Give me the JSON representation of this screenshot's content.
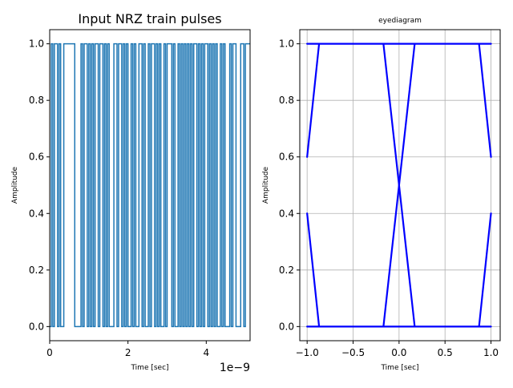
{
  "chart_data": [
    {
      "type": "line",
      "title": "Input NRZ train pulses",
      "xlabel": "Time [sec]",
      "ylabel": "Amplitude",
      "x_offset_label": "1e−9",
      "xlim": [
        0,
        5.12e-09
      ],
      "ylim": [
        -0.05,
        1.05
      ],
      "bit_period_sec": 4e-11,
      "grid": false,
      "x_ticks": [
        0,
        2,
        4
      ],
      "x_tick_labels": [
        "0",
        "2",
        "4"
      ],
      "y_ticks": [
        0.0,
        0.2,
        0.4,
        0.6,
        0.8,
        1.0
      ],
      "y_tick_labels": [
        "0.0",
        "0.2",
        "0.4",
        "0.6",
        "0.8",
        "1.0"
      ],
      "color": "#1f77b4",
      "series": [
        {
          "bits": [
            0,
            1,
            0,
            1,
            1,
            0,
            1,
            0,
            0,
            1,
            1,
            1,
            1,
            1,
            1,
            1,
            0,
            0,
            0,
            0,
            1,
            0,
            1,
            1,
            0,
            1,
            0,
            1,
            0,
            1,
            1,
            0,
            1,
            1,
            0,
            1,
            0,
            1,
            0,
            0,
            0,
            1,
            1,
            0,
            1,
            1,
            0,
            1,
            0,
            1,
            0,
            0,
            1,
            0,
            1,
            0,
            0,
            1,
            1,
            0,
            1,
            0,
            0,
            1,
            0,
            1,
            1,
            0,
            1,
            0,
            1,
            0,
            0,
            1,
            0,
            1,
            1,
            1,
            0,
            1,
            0,
            0,
            1,
            0,
            1,
            0,
            1,
            0,
            1,
            0,
            1,
            0,
            1,
            1,
            0,
            1,
            0,
            1,
            0,
            1,
            1,
            0,
            1,
            0,
            1,
            0,
            1,
            0,
            0,
            1,
            0,
            1,
            0,
            0,
            0,
            1,
            0,
            1,
            1,
            0,
            0,
            0,
            1,
            1,
            0,
            1,
            1,
            1
          ]
        }
      ]
    },
    {
      "type": "line",
      "title": "eyediagram",
      "xlabel": "Time [sec]",
      "ylabel": "Amplitude",
      "xlim": [
        -1.08,
        1.1
      ],
      "ylim": [
        -0.05,
        1.05
      ],
      "grid": true,
      "x_ticks": [
        -1.0,
        -0.5,
        0.0,
        0.5,
        1.0
      ],
      "x_tick_labels": [
        "−1.0",
        "−0.5",
        "0.0",
        "0.5",
        "1.0"
      ],
      "y_ticks": [
        0.0,
        0.2,
        0.4,
        0.6,
        0.8,
        1.0
      ],
      "y_tick_labels": [
        "0.0",
        "0.2",
        "0.4",
        "0.6",
        "0.8",
        "1.0"
      ],
      "color": "#0000ff",
      "series": [
        {
          "x": [
            -1.0,
            1.0
          ],
          "y": [
            1.0,
            1.0
          ]
        },
        {
          "x": [
            -1.0,
            1.0
          ],
          "y": [
            0.0,
            0.0
          ]
        },
        {
          "x": [
            -1.0,
            -0.87
          ],
          "y": [
            0.6,
            1.0
          ]
        },
        {
          "x": [
            -1.0,
            -0.87
          ],
          "y": [
            0.4,
            0.0
          ]
        },
        {
          "x": [
            -0.17,
            0.17
          ],
          "y": [
            1.0,
            0.0
          ]
        },
        {
          "x": [
            -0.17,
            0.17
          ],
          "y": [
            0.0,
            1.0
          ]
        },
        {
          "x": [
            0.87,
            1.0
          ],
          "y": [
            1.0,
            0.6
          ]
        },
        {
          "x": [
            0.87,
            1.0
          ],
          "y": [
            0.0,
            0.4
          ]
        }
      ]
    }
  ]
}
